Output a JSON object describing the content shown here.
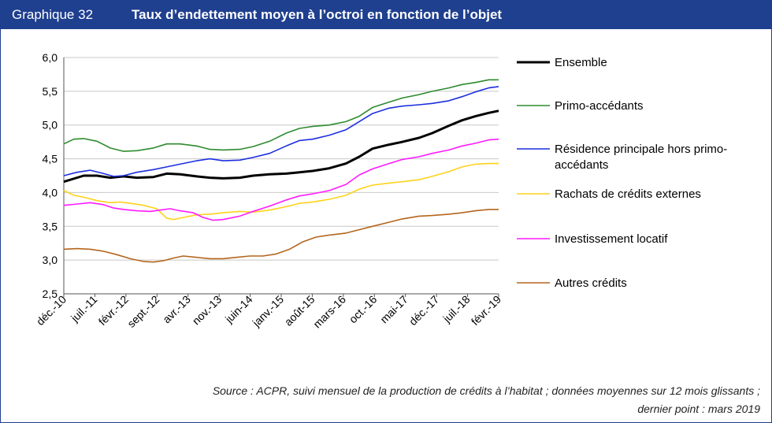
{
  "header": {
    "number": "Graphique 32",
    "title": "Taux d’endettement moyen à l’octroi en fonction de l’objet"
  },
  "source": {
    "line1": "Source : ACPR, suivi mensuel de la production de crédits à l’habitat ; données moyennes sur 12 mois glissants ;",
    "line2": "dernier point : mars 2019"
  },
  "chart_data": {
    "type": "line",
    "ylim": [
      2.5,
      6.0
    ],
    "y_ticks": [
      "6,0",
      "5,5",
      "5,0",
      "4,5",
      "4,0",
      "3,5",
      "3,0",
      "2,5"
    ],
    "x_labels": [
      "déc.-10",
      "juil.-11",
      "févr.-12",
      "sept.-12",
      "avr.-13",
      "nov.-13",
      "juin-14",
      "janv.-15",
      "août-15",
      "mars-16",
      "oct.-16",
      "mai-17",
      "déc.-17",
      "juil.-18",
      "févr.-19"
    ],
    "grid": "horizontal",
    "legend_position": "right",
    "series": [
      {
        "name": "Ensemble",
        "color": "#000000",
        "values": [
          [
            0,
            4.16
          ],
          [
            6,
            4.25
          ],
          [
            10,
            4.25
          ],
          [
            14,
            4.22
          ],
          [
            18,
            4.24
          ],
          [
            22,
            4.22
          ],
          [
            27,
            4.23
          ],
          [
            31,
            4.28
          ],
          [
            35,
            4.27
          ],
          [
            40,
            4.24
          ],
          [
            44,
            4.22
          ],
          [
            48,
            4.21
          ],
          [
            53,
            4.22
          ],
          [
            57,
            4.25
          ],
          [
            62,
            4.27
          ],
          [
            67,
            4.28
          ],
          [
            71,
            4.3
          ],
          [
            75,
            4.32
          ],
          [
            80,
            4.36
          ],
          [
            85,
            4.43
          ],
          [
            89,
            4.53
          ],
          [
            93,
            4.65
          ],
          [
            98,
            4.71
          ],
          [
            102,
            4.75
          ],
          [
            107,
            4.81
          ],
          [
            111,
            4.88
          ],
          [
            116,
            4.99
          ],
          [
            120,
            5.07
          ],
          [
            124,
            5.13
          ],
          [
            128,
            5.18
          ],
          [
            131,
            5.21
          ]
        ]
      },
      {
        "name": "Primo-accédants",
        "color": "#2e8b2e",
        "values": [
          [
            0,
            4.72
          ],
          [
            3,
            4.79
          ],
          [
            6,
            4.8
          ],
          [
            10,
            4.76
          ],
          [
            14,
            4.66
          ],
          [
            18,
            4.61
          ],
          [
            22,
            4.62
          ],
          [
            27,
            4.66
          ],
          [
            31,
            4.72
          ],
          [
            35,
            4.72
          ],
          [
            40,
            4.69
          ],
          [
            44,
            4.64
          ],
          [
            48,
            4.63
          ],
          [
            53,
            4.64
          ],
          [
            57,
            4.68
          ],
          [
            62,
            4.76
          ],
          [
            67,
            4.88
          ],
          [
            71,
            4.95
          ],
          [
            75,
            4.98
          ],
          [
            80,
            5.0
          ],
          [
            85,
            5.05
          ],
          [
            89,
            5.13
          ],
          [
            93,
            5.26
          ],
          [
            98,
            5.34
          ],
          [
            102,
            5.4
          ],
          [
            107,
            5.45
          ],
          [
            111,
            5.5
          ],
          [
            116,
            5.55
          ],
          [
            120,
            5.6
          ],
          [
            124,
            5.63
          ],
          [
            128,
            5.67
          ],
          [
            131,
            5.67
          ]
        ]
      },
      {
        "name": "Résidence principale hors primo-accédants",
        "color": "#1c2fe0",
        "values": [
          [
            0,
            4.25
          ],
          [
            4,
            4.3
          ],
          [
            8,
            4.33
          ],
          [
            12,
            4.28
          ],
          [
            15,
            4.24
          ],
          [
            18,
            4.25
          ],
          [
            22,
            4.3
          ],
          [
            27,
            4.34
          ],
          [
            31,
            4.38
          ],
          [
            35,
            4.42
          ],
          [
            40,
            4.47
          ],
          [
            44,
            4.5
          ],
          [
            48,
            4.47
          ],
          [
            53,
            4.48
          ],
          [
            57,
            4.52
          ],
          [
            62,
            4.58
          ],
          [
            67,
            4.69
          ],
          [
            71,
            4.77
          ],
          [
            75,
            4.79
          ],
          [
            80,
            4.85
          ],
          [
            85,
            4.93
          ],
          [
            89,
            5.05
          ],
          [
            93,
            5.17
          ],
          [
            98,
            5.25
          ],
          [
            102,
            5.28
          ],
          [
            107,
            5.3
          ],
          [
            111,
            5.32
          ],
          [
            116,
            5.36
          ],
          [
            120,
            5.42
          ],
          [
            124,
            5.49
          ],
          [
            128,
            5.55
          ],
          [
            131,
            5.57
          ]
        ]
      },
      {
        "name": "Rachats de crédits externes",
        "color": "#ffd21a",
        "values": [
          [
            0,
            4.03
          ],
          [
            3,
            3.96
          ],
          [
            6,
            3.93
          ],
          [
            10,
            3.88
          ],
          [
            14,
            3.85
          ],
          [
            17,
            3.86
          ],
          [
            20,
            3.84
          ],
          [
            24,
            3.81
          ],
          [
            28,
            3.76
          ],
          [
            31,
            3.62
          ],
          [
            33,
            3.6
          ],
          [
            36,
            3.63
          ],
          [
            40,
            3.67
          ],
          [
            44,
            3.68
          ],
          [
            48,
            3.7
          ],
          [
            53,
            3.72
          ],
          [
            57,
            3.71
          ],
          [
            62,
            3.74
          ],
          [
            67,
            3.79
          ],
          [
            71,
            3.84
          ],
          [
            75,
            3.86
          ],
          [
            80,
            3.9
          ],
          [
            85,
            3.96
          ],
          [
            89,
            4.05
          ],
          [
            93,
            4.11
          ],
          [
            98,
            4.14
          ],
          [
            102,
            4.16
          ],
          [
            107,
            4.19
          ],
          [
            111,
            4.24
          ],
          [
            116,
            4.31
          ],
          [
            120,
            4.38
          ],
          [
            124,
            4.42
          ],
          [
            128,
            4.43
          ],
          [
            131,
            4.43
          ]
        ]
      },
      {
        "name": "Investissement locatif",
        "color": "#ff1aff",
        "values": [
          [
            0,
            3.81
          ],
          [
            4,
            3.83
          ],
          [
            8,
            3.85
          ],
          [
            12,
            3.82
          ],
          [
            15,
            3.77
          ],
          [
            18,
            3.75
          ],
          [
            22,
            3.73
          ],
          [
            26,
            3.72
          ],
          [
            29,
            3.74
          ],
          [
            32,
            3.76
          ],
          [
            35,
            3.73
          ],
          [
            39,
            3.7
          ],
          [
            42,
            3.63
          ],
          [
            45,
            3.59
          ],
          [
            48,
            3.6
          ],
          [
            53,
            3.65
          ],
          [
            57,
            3.72
          ],
          [
            62,
            3.8
          ],
          [
            67,
            3.89
          ],
          [
            71,
            3.95
          ],
          [
            75,
            3.98
          ],
          [
            80,
            4.03
          ],
          [
            85,
            4.12
          ],
          [
            89,
            4.26
          ],
          [
            93,
            4.35
          ],
          [
            98,
            4.43
          ],
          [
            102,
            4.49
          ],
          [
            107,
            4.53
          ],
          [
            111,
            4.58
          ],
          [
            116,
            4.63
          ],
          [
            120,
            4.69
          ],
          [
            124,
            4.73
          ],
          [
            128,
            4.78
          ],
          [
            131,
            4.79
          ]
        ]
      },
      {
        "name": "Autres crédits",
        "color": "#b5651d",
        "values": [
          [
            0,
            3.16
          ],
          [
            4,
            3.17
          ],
          [
            8,
            3.16
          ],
          [
            12,
            3.13
          ],
          [
            16,
            3.08
          ],
          [
            20,
            3.02
          ],
          [
            24,
            2.98
          ],
          [
            27,
            2.97
          ],
          [
            30,
            2.99
          ],
          [
            33,
            3.03
          ],
          [
            36,
            3.06
          ],
          [
            40,
            3.04
          ],
          [
            44,
            3.02
          ],
          [
            48,
            3.02
          ],
          [
            52,
            3.04
          ],
          [
            56,
            3.06
          ],
          [
            60,
            3.06
          ],
          [
            64,
            3.09
          ],
          [
            68,
            3.16
          ],
          [
            72,
            3.27
          ],
          [
            76,
            3.34
          ],
          [
            80,
            3.37
          ],
          [
            85,
            3.4
          ],
          [
            89,
            3.45
          ],
          [
            93,
            3.5
          ],
          [
            98,
            3.56
          ],
          [
            102,
            3.61
          ],
          [
            107,
            3.65
          ],
          [
            111,
            3.66
          ],
          [
            116,
            3.68
          ],
          [
            120,
            3.7
          ],
          [
            124,
            3.73
          ],
          [
            128,
            3.75
          ],
          [
            131,
            3.75
          ]
        ]
      }
    ]
  }
}
